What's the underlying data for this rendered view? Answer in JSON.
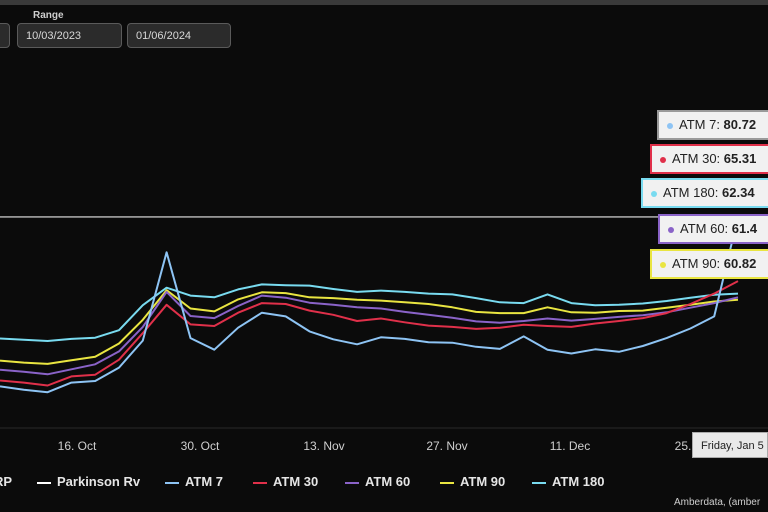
{
  "range": {
    "label": "Range",
    "start": "10/03/2023",
    "end": "01/06/2024"
  },
  "tooltip": {
    "date": "Friday, Jan 5",
    "items": [
      {
        "label": "ATM 7",
        "value": "80.72",
        "color": "#8ec4f4"
      },
      {
        "label": "ATM 30",
        "value": "65.31",
        "color": "#e0304a"
      },
      {
        "label": "ATM 180",
        "value": "62.34",
        "color": "#79dbf0"
      },
      {
        "label": "ATM 60",
        "value": "61.4",
        "color": "#8a63c8"
      },
      {
        "label": "ATM 90",
        "value": "60.82",
        "color": "#e9e541"
      }
    ]
  },
  "legend": [
    {
      "label": "RP",
      "color": "#c9a0ff"
    },
    {
      "label": "Parkinson Rv",
      "color": "#ffffff"
    },
    {
      "label": "ATM 7",
      "color": "#8ec4f4"
    },
    {
      "label": "ATM 30",
      "color": "#e0304a"
    },
    {
      "label": "ATM 60",
      "color": "#8a63c8"
    },
    {
      "label": "ATM 90",
      "color": "#e9e541"
    },
    {
      "label": "ATM 180",
      "color": "#79dbf0"
    }
  ],
  "credit": "Amberdata, (amber",
  "chart_data": {
    "type": "line",
    "title": "",
    "xlabel": "",
    "ylabel": "",
    "x_ticks": [
      "16. Oct",
      "30. Oct",
      "13. Nov",
      "27. Nov",
      "11. Dec",
      "25."
    ],
    "ylim": [
      30,
      110
    ],
    "reference_line": {
      "name": "Parkinson Rv",
      "value": 80.7
    },
    "x": [
      "Oct 5",
      "Oct 8",
      "Oct 11",
      "Oct 14",
      "Oct 17",
      "Oct 20",
      "Oct 23",
      "Oct 24",
      "Oct 27",
      "Oct 30",
      "Nov 2",
      "Nov 5",
      "Nov 8",
      "Nov 11",
      "Nov 14",
      "Nov 17",
      "Nov 20",
      "Nov 23",
      "Nov 26",
      "Nov 29",
      "Dec 2",
      "Dec 5",
      "Dec 8",
      "Dec 11",
      "Dec 14",
      "Dec 17",
      "Dec 20",
      "Dec 23",
      "Dec 26",
      "Dec 29",
      "Jan 1",
      "Jan 5"
    ],
    "series": [
      {
        "name": "ATM 180",
        "color": "#79dbf0",
        "values": [
          51.5,
          51.2,
          50.9,
          51.4,
          51.7,
          53.5,
          59.5,
          63.7,
          61.8,
          61.4,
          63.3,
          64.5,
          64.3,
          64.2,
          63.4,
          62.7,
          63.0,
          62.7,
          62.3,
          62.1,
          61.2,
          60.2,
          60.0,
          62.1,
          60.0,
          59.5,
          59.6,
          59.9,
          60.5,
          61.3,
          62.0,
          62.3
        ]
      },
      {
        "name": "ATM 90",
        "color": "#e9e541",
        "values": [
          46.2,
          45.7,
          45.4,
          46.3,
          47.1,
          50.3,
          56.0,
          63.1,
          58.7,
          58.0,
          60.9,
          62.6,
          62.4,
          61.4,
          61.2,
          60.8,
          60.6,
          60.2,
          59.8,
          59.0,
          57.9,
          57.6,
          57.6,
          59.0,
          57.8,
          57.7,
          58.1,
          58.2,
          58.9,
          59.6,
          60.4,
          60.8
        ]
      },
      {
        "name": "ATM 60",
        "color": "#8a63c8",
        "values": [
          44.0,
          43.5,
          42.9,
          44.1,
          45.3,
          48.4,
          54.3,
          62.7,
          56.9,
          56.4,
          59.3,
          61.8,
          61.3,
          60.1,
          59.6,
          59.0,
          58.7,
          57.9,
          57.2,
          56.5,
          55.6,
          55.3,
          55.7,
          56.3,
          55.8,
          56.2,
          56.7,
          57.1,
          57.8,
          58.9,
          60.0,
          61.4
        ]
      },
      {
        "name": "ATM 30",
        "color": "#e0304a",
        "values": [
          41.4,
          40.9,
          40.2,
          42.4,
          42.8,
          46.4,
          52.8,
          59.6,
          54.9,
          54.5,
          57.7,
          60.0,
          59.8,
          58.2,
          57.2,
          55.7,
          56.3,
          55.4,
          54.6,
          54.3,
          53.8,
          54.1,
          54.8,
          54.5,
          54.3,
          55.1,
          55.7,
          56.4,
          57.6,
          59.8,
          62.3,
          65.3
        ]
      },
      {
        "name": "ATM 7",
        "color": "#8ec4f4",
        "values": [
          40.0,
          39.2,
          38.6,
          40.9,
          41.3,
          44.5,
          51.0,
          72.2,
          51.6,
          48.8,
          54.1,
          57.7,
          56.8,
          53.2,
          51.3,
          50.1,
          51.8,
          51.4,
          50.6,
          50.5,
          49.5,
          49.0,
          52.0,
          48.8,
          47.9,
          48.9,
          48.3,
          49.7,
          51.6,
          53.9,
          56.8,
          80.7
        ]
      }
    ]
  }
}
